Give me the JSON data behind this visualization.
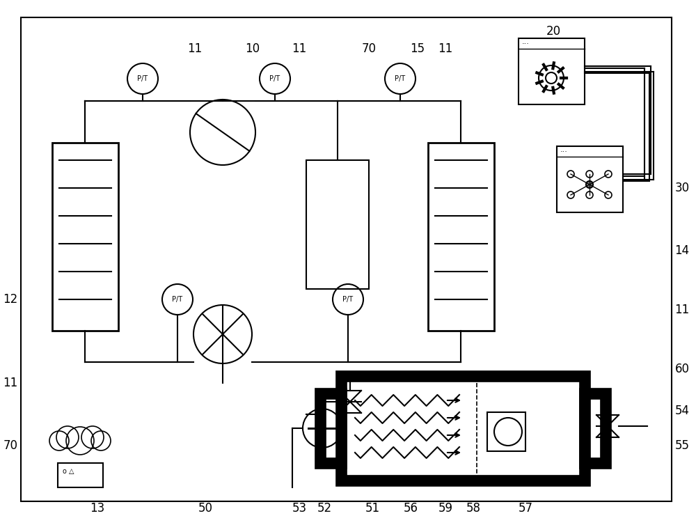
{
  "title": "",
  "bg_color": "#ffffff",
  "border_color": "#000000",
  "line_color": "#000000",
  "label_color": "#000000",
  "labels": {
    "11_top_left": "11",
    "10": "10",
    "11_top_mid": "11",
    "15": "15",
    "11_top_right": "11",
    "20": "20",
    "12": "12",
    "30": "30",
    "14": "14",
    "11_left": "11",
    "60": "60",
    "54": "54",
    "55": "55",
    "70": "70",
    "13": "13",
    "50": "50",
    "53": "53",
    "52": "52",
    "51": "51",
    "56": "56",
    "59": "59",
    "58": "58",
    "57": "57",
    "11_right": "11"
  }
}
